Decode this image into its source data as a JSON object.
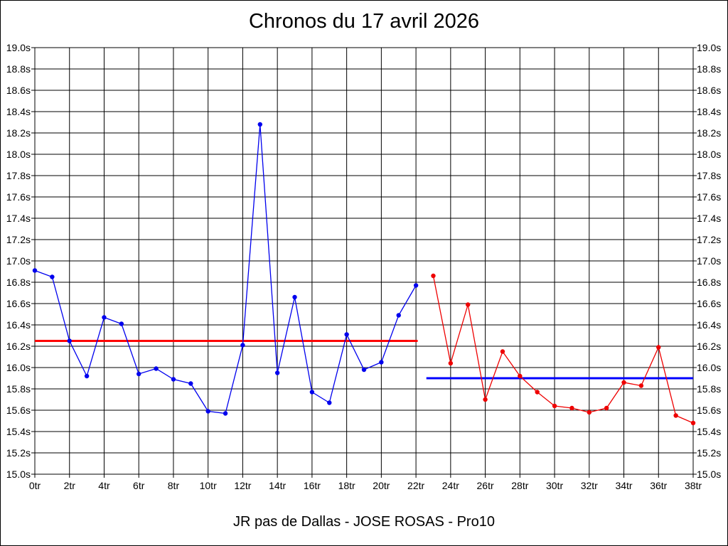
{
  "chart_data": {
    "type": "line",
    "title": "Chronos du 17 avril 2026",
    "subtitle": "JR pas de Dallas - JOSE ROSAS - Pro10",
    "xlabel": "",
    "ylabel": "",
    "xlim": [
      0,
      38
    ],
    "ylim": [
      15.0,
      19.0
    ],
    "grid": true,
    "x_ticks": [
      "0tr",
      "2tr",
      "4tr",
      "6tr",
      "8tr",
      "10tr",
      "12tr",
      "14tr",
      "16tr",
      "18tr",
      "20tr",
      "22tr",
      "24tr",
      "26tr",
      "28tr",
      "30tr",
      "32tr",
      "34tr",
      "36tr",
      "38tr"
    ],
    "y_ticks": [
      "15.0s",
      "15.2s",
      "15.4s",
      "15.6s",
      "15.8s",
      "16.0s",
      "16.2s",
      "16.4s",
      "16.6s",
      "16.8s",
      "17.0s",
      "17.2s",
      "17.4s",
      "17.6s",
      "17.8s",
      "18.0s",
      "18.2s",
      "18.4s",
      "18.6s",
      "18.8s",
      "19.0s"
    ],
    "y_tick_values": [
      15.0,
      15.2,
      15.4,
      15.6,
      15.8,
      16.0,
      16.2,
      16.4,
      16.6,
      16.8,
      17.0,
      17.2,
      17.4,
      17.6,
      17.8,
      18.0,
      18.2,
      18.4,
      18.6,
      18.8,
      19.0
    ],
    "series": [
      {
        "color": "#0000ee",
        "x": [
          0,
          1,
          2,
          3,
          4,
          5,
          6,
          7,
          8,
          9,
          10,
          11,
          12,
          13,
          14,
          15,
          16,
          17,
          18,
          19,
          20,
          21,
          22
        ],
        "y": [
          16.91,
          16.85,
          16.25,
          15.92,
          16.47,
          16.41,
          15.94,
          15.99,
          15.89,
          15.85,
          15.59,
          15.57,
          16.21,
          18.28,
          15.95,
          16.66,
          15.77,
          15.67,
          16.31,
          15.98,
          16.05,
          16.49,
          16.77
        ]
      },
      {
        "color": "#ee0000",
        "x": [
          23,
          24,
          25,
          26,
          27,
          28,
          29,
          30,
          31,
          32,
          33,
          34,
          35,
          36,
          37,
          38
        ],
        "y": [
          16.86,
          16.04,
          16.59,
          15.7,
          16.15,
          15.92,
          15.77,
          15.64,
          15.62,
          15.58,
          15.62,
          15.86,
          15.83,
          16.19,
          15.55,
          15.48
        ]
      }
    ],
    "reference_lines": [
      {
        "color": "#ff0000",
        "y": 16.25,
        "x_range": [
          0,
          22.1
        ]
      },
      {
        "color": "#0000ff",
        "y": 15.9,
        "x_range": [
          22.6,
          38
        ]
      }
    ]
  }
}
